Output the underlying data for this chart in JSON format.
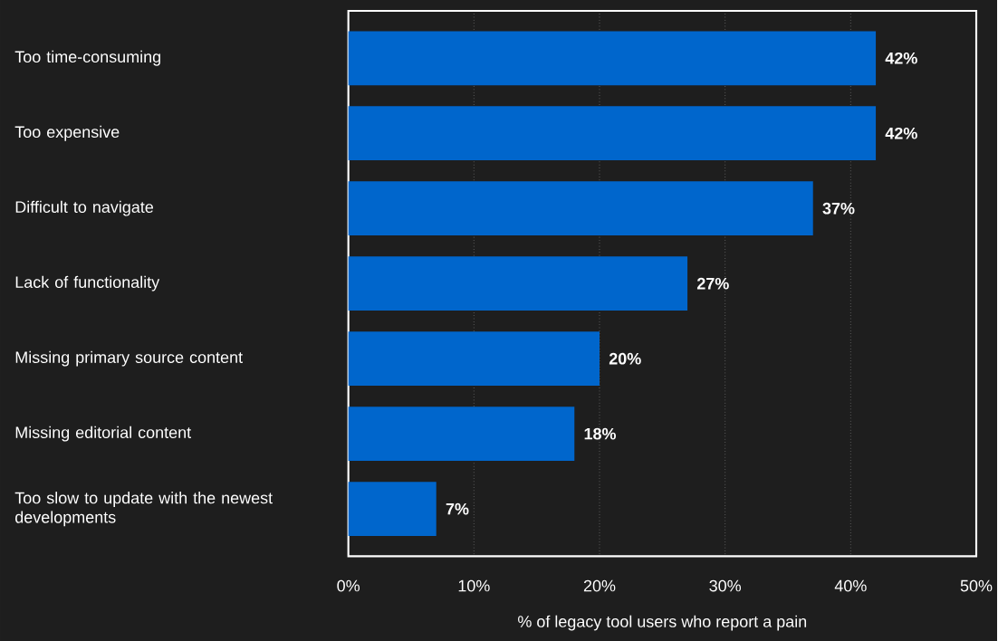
{
  "chart_data": {
    "type": "bar",
    "orientation": "horizontal",
    "categories": [
      "Too time-consuming",
      "Too expensive",
      "Difficult to navigate",
      "Lack of functionality",
      "Missing primary source content",
      "Missing editorial content",
      "Too slow to update with the newest developments"
    ],
    "values": [
      42,
      42,
      37,
      27,
      20,
      18,
      7
    ],
    "value_labels": [
      "42%",
      "42%",
      "37%",
      "27%",
      "20%",
      "18%",
      "7%"
    ],
    "color": "#0066cc",
    "xlim": [
      0,
      50
    ],
    "xticks": [
      {
        "value": 0,
        "label": "0%"
      },
      {
        "value": 10,
        "label": "10%"
      },
      {
        "value": 20,
        "label": "20%"
      },
      {
        "value": 30,
        "label": "30%"
      },
      {
        "value": 40,
        "label": "40%"
      },
      {
        "value": 50,
        "label": "50%"
      }
    ],
    "xlabel": "% of legacy tool users who report a pain",
    "grid": "x"
  }
}
